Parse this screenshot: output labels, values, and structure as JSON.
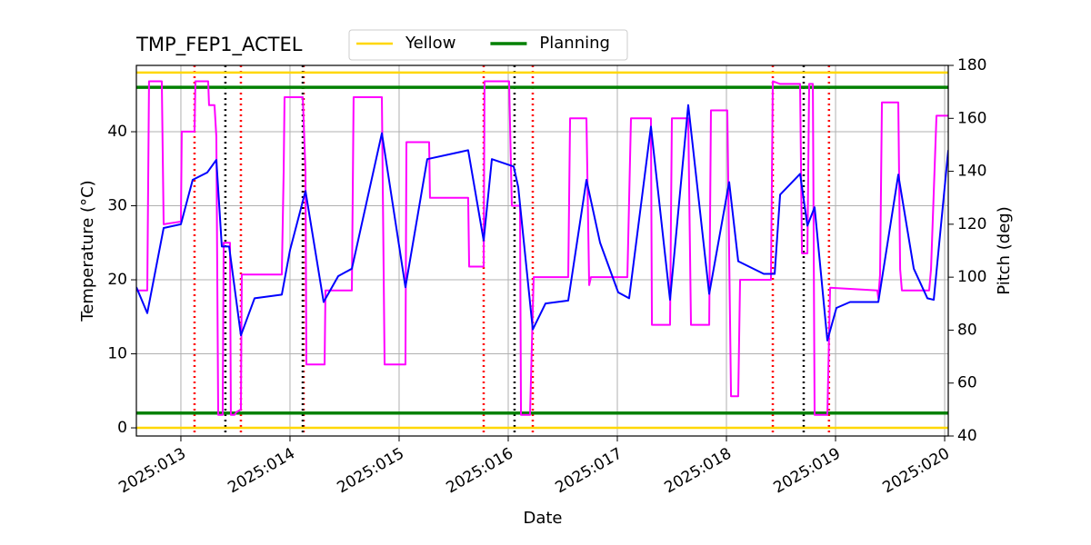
{
  "chart_data": {
    "type": "line",
    "title": "TMP_FEP1_ACTEL",
    "xlabel": "Date",
    "ylabel": "Temperature (°C)",
    "y2label": "Pitch (deg)",
    "y2color": "magenta",
    "grid": true,
    "legend": "top",
    "xlim": [
      12.592,
      20.033
    ],
    "xticks": [
      {
        "value": 13,
        "label": "2025:013"
      },
      {
        "value": 14,
        "label": "2025:014"
      },
      {
        "value": 15,
        "label": "2025:015"
      },
      {
        "value": 16,
        "label": "2025:016"
      },
      {
        "value": 17,
        "label": "2025:017"
      },
      {
        "value": 18,
        "label": "2025:018"
      },
      {
        "value": 19,
        "label": "2025:019"
      },
      {
        "value": 20,
        "label": "2025:020"
      }
    ],
    "ylim": [
      -1.1,
      48.96
    ],
    "yticks": [
      0,
      10,
      20,
      30,
      40
    ],
    "y2lim": [
      40,
      180
    ],
    "y2ticks": [
      40,
      60,
      80,
      100,
      120,
      140,
      160,
      180
    ],
    "hlines": [
      {
        "name": "Yellow",
        "color": "gold",
        "values": [
          48,
          0
        ]
      },
      {
        "name": "Planning",
        "color": "green",
        "values": [
          46,
          2
        ]
      }
    ],
    "vlines": [
      {
        "color": "red",
        "x": [
          13.125,
          13.55,
          14.125,
          15.775,
          16.225,
          18.425,
          18.94
        ]
      },
      {
        "color": "black",
        "x": [
          13.408,
          14.117,
          16.058,
          18.708
        ]
      }
    ],
    "series": [
      {
        "color": "magenta",
        "axis": "y2",
        "x": [
          12.592,
          12.692,
          12.708,
          12.825,
          12.842,
          13.0,
          13.008,
          13.125,
          13.133,
          13.25,
          13.258,
          13.308,
          13.325,
          13.342,
          13.383,
          13.392,
          13.45,
          13.458,
          13.492,
          13.508,
          13.55,
          13.558,
          13.925,
          13.942,
          13.95,
          14.117,
          14.142,
          14.15,
          14.317,
          14.325,
          14.567,
          14.583,
          14.842,
          14.867,
          15.058,
          15.067,
          15.275,
          15.283,
          15.633,
          15.642,
          15.775,
          15.783,
          16.008,
          16.033,
          16.108,
          16.117,
          16.2,
          16.233,
          16.55,
          16.567,
          16.717,
          16.742,
          16.758,
          17.092,
          17.125,
          17.308,
          17.317,
          17.483,
          17.5,
          17.65,
          17.675,
          17.842,
          17.858,
          18.008,
          18.042,
          18.108,
          18.125,
          18.408,
          18.425,
          18.492,
          18.675,
          18.692,
          18.742,
          18.758,
          18.792,
          18.808,
          18.925,
          18.95,
          19.383,
          19.392,
          19.408,
          19.425,
          19.575,
          19.592,
          19.608,
          19.858,
          19.875,
          19.925,
          20.033
        ],
        "values": [
          95,
          95,
          174,
          174,
          120,
          121,
          155,
          155,
          174,
          174,
          165,
          165,
          153,
          48,
          48,
          113,
          113,
          48,
          48,
          49,
          50,
          101,
          101,
          140,
          168,
          168,
          140,
          67,
          67,
          95,
          95,
          168,
          168,
          67,
          67,
          151,
          151,
          130,
          130,
          104,
          104,
          174,
          174,
          127,
          127,
          48,
          48,
          100,
          100,
          160,
          160,
          97,
          100,
          100,
          160,
          160,
          82,
          82,
          160,
          160,
          82,
          82,
          163,
          163,
          55,
          55,
          99,
          99,
          174,
          173,
          173,
          109,
          109,
          173,
          173,
          48,
          48,
          96,
          95,
          92,
          101,
          166,
          166,
          103,
          95,
          95,
          103,
          161,
          161
        ]
      },
      {
        "color": "blue",
        "x": [
          12.592,
          12.692,
          12.842,
          13.0,
          13.108,
          13.242,
          13.325,
          13.375,
          13.442,
          13.55,
          13.675,
          13.925,
          14.0,
          14.142,
          14.308,
          14.442,
          14.567,
          14.842,
          15.058,
          15.258,
          15.633,
          15.775,
          15.85,
          16.05,
          16.092,
          16.225,
          16.342,
          16.55,
          16.717,
          16.842,
          17.008,
          17.108,
          17.308,
          17.483,
          17.65,
          17.842,
          18.025,
          18.108,
          18.342,
          18.442,
          18.492,
          18.675,
          18.742,
          18.808,
          18.925,
          19.008,
          19.133,
          19.392,
          19.575,
          19.717,
          19.842,
          19.9,
          20.033
        ],
        "values": [
          19,
          15.5,
          27,
          27.5,
          33.5,
          34.5,
          36.2,
          24.5,
          24.5,
          12.5,
          17.5,
          18,
          24,
          32,
          17,
          20.5,
          21.5,
          39.8,
          19,
          36.3,
          37.5,
          25.3,
          36.3,
          35.3,
          32.5,
          13.3,
          16.8,
          17.2,
          33.5,
          25,
          18.3,
          17.5,
          40.7,
          17.3,
          43.6,
          18.1,
          33.2,
          22.5,
          20.8,
          20.8,
          31.5,
          34.3,
          27.3,
          29.8,
          11.8,
          16.2,
          17,
          17,
          34.2,
          21.5,
          17.5,
          17.3,
          37.5
        ]
      }
    ]
  }
}
